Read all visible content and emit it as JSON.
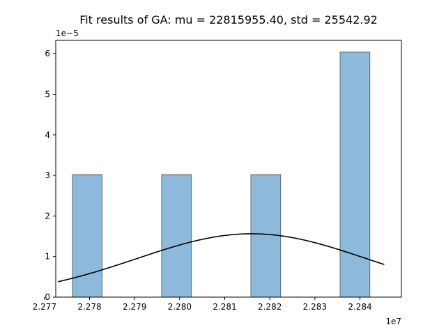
{
  "chart_data": {
    "type": "bar",
    "title": "Fit results of GA: mu = 22815955.40,  std = 25542.92",
    "xlabel": "",
    "ylabel": "",
    "x_multiplier_label": "1e7",
    "y_multiplier_label": "1e−5",
    "x_scale": 10000000,
    "y_scale": 1e-05,
    "xlim": [
      2.27725,
      2.28492
    ],
    "ylim": [
      0,
      6.33
    ],
    "x_ticks": [
      2.277,
      2.278,
      2.279,
      2.28,
      2.281,
      2.282,
      2.283,
      2.284
    ],
    "x_tick_labels": [
      "2.277",
      "2.278",
      "2.279",
      "2.280",
      "2.281",
      "2.282",
      "2.283",
      "2.284"
    ],
    "y_ticks": [
      0,
      1,
      2,
      3,
      4,
      5,
      6
    ],
    "y_tick_labels": [
      "0",
      "1",
      "2",
      "3",
      "4",
      "5",
      "6"
    ],
    "grid": false,
    "bars": [
      {
        "x_start": 2.27762,
        "x_end": 2.27828,
        "value": 3.02
      },
      {
        "x_start": 2.27828,
        "x_end": 2.27894,
        "value": 0
      },
      {
        "x_start": 2.27894,
        "x_end": 2.2796,
        "value": 0
      },
      {
        "x_start": 2.2796,
        "x_end": 2.28026,
        "value": 3.02
      },
      {
        "x_start": 2.28026,
        "x_end": 2.28092,
        "value": 0
      },
      {
        "x_start": 2.28092,
        "x_end": 2.28158,
        "value": 0
      },
      {
        "x_start": 2.28158,
        "x_end": 2.28224,
        "value": 3.02
      },
      {
        "x_start": 2.28224,
        "x_end": 2.2829,
        "value": 0
      },
      {
        "x_start": 2.2829,
        "x_end": 2.28356,
        "value": 0
      },
      {
        "x_start": 2.28356,
        "x_end": 2.28422,
        "value": 6.04
      }
    ],
    "bar_color": "#8db9da",
    "bar_edge_color": "#5c6b78",
    "fit_curve": {
      "mu": 22815955.4,
      "std": 25542.92,
      "x_range": [
        2.2773,
        2.28454
      ],
      "color": "#000000"
    }
  }
}
